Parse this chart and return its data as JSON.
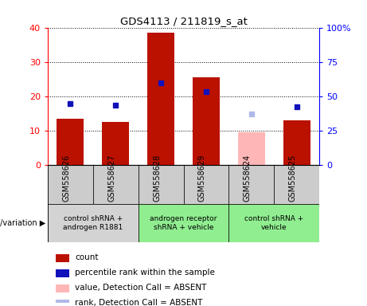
{
  "title": "GDS4113 / 211819_s_at",
  "samples": [
    "GSM558626",
    "GSM558627",
    "GSM558628",
    "GSM558629",
    "GSM558624",
    "GSM558625"
  ],
  "count_values": [
    13.5,
    12.5,
    38.5,
    25.5,
    null,
    13.0
  ],
  "count_absent": [
    null,
    null,
    null,
    null,
    9.5,
    null
  ],
  "rank_pct": [
    45.0,
    43.5,
    60.0,
    53.5,
    null,
    42.5
  ],
  "rank_absent_pct": [
    null,
    null,
    null,
    null,
    37.5,
    null
  ],
  "left_ylim": [
    0,
    40
  ],
  "right_ylim": [
    0,
    100
  ],
  "left_ticks": [
    0,
    10,
    20,
    30,
    40
  ],
  "right_ticks": [
    0,
    25,
    50,
    75,
    100
  ],
  "left_tick_labels": [
    "0",
    "10",
    "20",
    "30",
    "40"
  ],
  "right_tick_labels": [
    "0",
    "25",
    "50",
    "75",
    "100%"
  ],
  "groups": [
    {
      "label": "control shRNA +\nandrogen R1881",
      "color": "#d3d3d3",
      "indices": [
        0,
        1
      ]
    },
    {
      "label": "androgen receptor\nshRNA + vehicle",
      "color": "#90ee90",
      "indices": [
        2,
        3
      ]
    },
    {
      "label": "control shRNA +\nvehicle",
      "color": "#90ee90",
      "indices": [
        4,
        5
      ]
    }
  ],
  "bar_width": 0.6,
  "count_color": "#bb1100",
  "rank_color": "#1111bb",
  "count_absent_color": "#ffb6b6",
  "rank_absent_color": "#b0b8e8",
  "sample_bg_color": "#cccccc",
  "genotype_label": "genotype/variation",
  "legend_items": [
    {
      "color": "#bb1100",
      "label": "count"
    },
    {
      "color": "#1111bb",
      "label": "percentile rank within the sample"
    },
    {
      "color": "#ffb6b6",
      "label": "value, Detection Call = ABSENT"
    },
    {
      "color": "#b0b8e8",
      "label": "rank, Detection Call = ABSENT"
    }
  ]
}
